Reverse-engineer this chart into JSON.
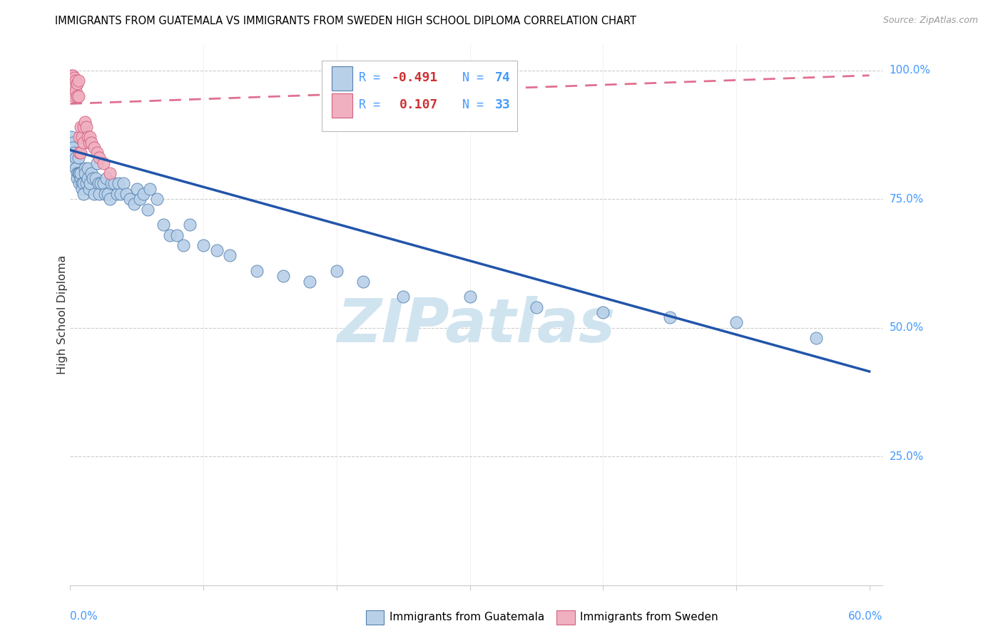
{
  "title": "IMMIGRANTS FROM GUATEMALA VS IMMIGRANTS FROM SWEDEN HIGH SCHOOL DIPLOMA CORRELATION CHART",
  "source": "Source: ZipAtlas.com",
  "ylabel": "High School Diploma",
  "legend1_R": "-0.491",
  "legend1_N": "74",
  "legend2_R": "0.107",
  "legend2_N": "33",
  "blue_fill": "#b8d0e8",
  "blue_edge": "#5580b0",
  "pink_fill": "#f0b0c0",
  "pink_edge": "#d06080",
  "blue_line_color": "#2255aa",
  "pink_line_color": "#e07090",
  "watermark_color": "#d0e4f0",
  "grid_color": "#cccccc",
  "axis_label_color": "#4499ff",
  "blue_x": [
    0.001,
    0.002,
    0.002,
    0.003,
    0.003,
    0.004,
    0.004,
    0.005,
    0.005,
    0.006,
    0.006,
    0.007,
    0.007,
    0.008,
    0.008,
    0.009,
    0.009,
    0.01,
    0.01,
    0.011,
    0.011,
    0.012,
    0.013,
    0.013,
    0.014,
    0.015,
    0.016,
    0.017,
    0.018,
    0.019,
    0.02,
    0.021,
    0.022,
    0.023,
    0.025,
    0.026,
    0.027,
    0.028,
    0.03,
    0.031,
    0.033,
    0.035,
    0.036,
    0.038,
    0.04,
    0.042,
    0.045,
    0.048,
    0.05,
    0.052,
    0.055,
    0.058,
    0.06,
    0.065,
    0.07,
    0.075,
    0.08,
    0.085,
    0.09,
    0.1,
    0.11,
    0.12,
    0.14,
    0.16,
    0.18,
    0.2,
    0.22,
    0.25,
    0.3,
    0.35,
    0.4,
    0.45,
    0.5,
    0.56
  ],
  "blue_y": [
    0.87,
    0.86,
    0.85,
    0.84,
    0.82,
    0.83,
    0.81,
    0.8,
    0.79,
    0.83,
    0.8,
    0.78,
    0.8,
    0.79,
    0.8,
    0.78,
    0.77,
    0.78,
    0.76,
    0.81,
    0.8,
    0.78,
    0.81,
    0.79,
    0.77,
    0.78,
    0.8,
    0.79,
    0.76,
    0.79,
    0.82,
    0.78,
    0.76,
    0.78,
    0.78,
    0.76,
    0.79,
    0.76,
    0.75,
    0.78,
    0.78,
    0.76,
    0.78,
    0.76,
    0.78,
    0.76,
    0.75,
    0.74,
    0.77,
    0.75,
    0.76,
    0.73,
    0.77,
    0.75,
    0.7,
    0.68,
    0.68,
    0.66,
    0.7,
    0.66,
    0.65,
    0.64,
    0.61,
    0.6,
    0.59,
    0.61,
    0.59,
    0.56,
    0.56,
    0.54,
    0.53,
    0.52,
    0.51,
    0.48
  ],
  "pink_x": [
    0.001,
    0.001,
    0.001,
    0.002,
    0.002,
    0.002,
    0.003,
    0.003,
    0.003,
    0.004,
    0.004,
    0.005,
    0.005,
    0.006,
    0.006,
    0.007,
    0.007,
    0.008,
    0.008,
    0.009,
    0.01,
    0.01,
    0.011,
    0.012,
    0.013,
    0.014,
    0.015,
    0.016,
    0.018,
    0.02,
    0.022,
    0.025,
    0.03
  ],
  "pink_y": [
    0.99,
    0.98,
    0.97,
    0.99,
    0.98,
    0.96,
    0.985,
    0.97,
    0.95,
    0.98,
    0.96,
    0.975,
    0.95,
    0.98,
    0.95,
    0.84,
    0.87,
    0.84,
    0.89,
    0.87,
    0.89,
    0.86,
    0.9,
    0.89,
    0.87,
    0.86,
    0.87,
    0.86,
    0.85,
    0.84,
    0.83,
    0.82,
    0.8
  ],
  "blue_line_x0": 0.0,
  "blue_line_x1": 0.6,
  "blue_line_y0": 0.845,
  "blue_line_y1": 0.415,
  "pink_line_x0": 0.0,
  "pink_line_x1": 0.6,
  "pink_line_y0": 0.935,
  "pink_line_y1": 0.99,
  "xlim": [
    0.0,
    0.61
  ],
  "ylim": [
    0.0,
    1.05
  ],
  "xmin_label": "0.0%",
  "xmax_label": "60.0%",
  "yticks": [
    0.25,
    0.5,
    0.75,
    1.0
  ],
  "ytick_labels": [
    "25.0%",
    "50.0%",
    "75.0%",
    "100.0%"
  ]
}
